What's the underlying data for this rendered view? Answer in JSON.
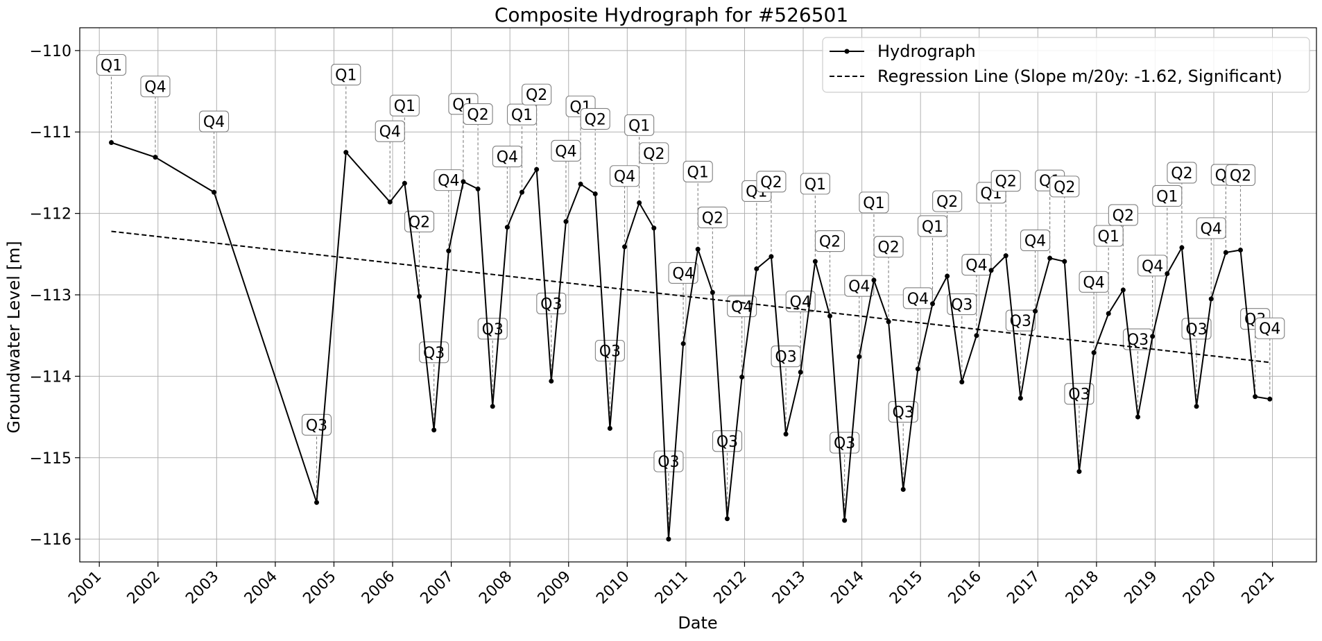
{
  "chart_data": {
    "type": "line",
    "title": "Composite Hydrograph for  #526501",
    "xlabel": "Date",
    "ylabel": "Groundwater Level [m]",
    "x_ticks": [
      "2001",
      "2002",
      "2003",
      "2004",
      "2005",
      "2006",
      "2007",
      "2008",
      "2009",
      "2010",
      "2011",
      "2012",
      "2013",
      "2014",
      "2015",
      "2016",
      "2017",
      "2018",
      "2019",
      "2020",
      "2021"
    ],
    "y_ticks": [
      "−110",
      "−111",
      "−112",
      "−113",
      "−114",
      "−115",
      "−116"
    ],
    "y_tick_values": [
      -110,
      -111,
      -112,
      -113,
      -114,
      -115,
      -116
    ],
    "xlim": [
      "2000-09-01",
      "2021-10-01"
    ],
    "ylim": [
      -116.28,
      -109.72
    ],
    "grid": true,
    "legend_position": "top-right",
    "series": [
      {
        "name": "Hydrograph",
        "style": "solid line with dot markers",
        "color": "#000000",
        "points": [
          {
            "date": "2001-03-15",
            "value": -111.13,
            "label": "Q1"
          },
          {
            "date": "2001-12-15",
            "value": -111.31,
            "label": "Q4"
          },
          {
            "date": "2002-12-15",
            "value": -111.74,
            "label": "Q4"
          },
          {
            "date": "2004-09-15",
            "value": -115.55,
            "label": "Q3"
          },
          {
            "date": "2005-03-15",
            "value": -111.25,
            "label": "Q1"
          },
          {
            "date": "2005-12-15",
            "value": -111.86,
            "label": "Q4"
          },
          {
            "date": "2006-03-15",
            "value": -111.63,
            "label": "Q1"
          },
          {
            "date": "2006-06-15",
            "value": -113.02,
            "label": "Q2"
          },
          {
            "date": "2006-09-15",
            "value": -114.66,
            "label": "Q3"
          },
          {
            "date": "2006-12-15",
            "value": -112.46,
            "label": "Q4"
          },
          {
            "date": "2007-03-15",
            "value": -111.61,
            "label": "Q1"
          },
          {
            "date": "2007-06-15",
            "value": -111.7,
            "label": "Q2"
          },
          {
            "date": "2007-09-15",
            "value": -114.37,
            "label": "Q3"
          },
          {
            "date": "2007-12-15",
            "value": -112.17,
            "label": "Q4"
          },
          {
            "date": "2008-03-15",
            "value": -111.74,
            "label": "Q1"
          },
          {
            "date": "2008-06-15",
            "value": -111.46,
            "label": "Q2"
          },
          {
            "date": "2008-09-15",
            "value": -114.06,
            "label": "Q3"
          },
          {
            "date": "2008-12-15",
            "value": -112.1,
            "label": "Q4"
          },
          {
            "date": "2009-03-15",
            "value": -111.64,
            "label": "Q1"
          },
          {
            "date": "2009-06-15",
            "value": -111.76,
            "label": "Q2"
          },
          {
            "date": "2009-09-15",
            "value": -114.64,
            "label": "Q3"
          },
          {
            "date": "2009-12-15",
            "value": -112.41,
            "label": "Q4"
          },
          {
            "date": "2010-03-15",
            "value": -111.87,
            "label": "Q1"
          },
          {
            "date": "2010-06-15",
            "value": -112.18,
            "label": "Q2"
          },
          {
            "date": "2010-09-15",
            "value": -116.0,
            "label": "Q3"
          },
          {
            "date": "2010-12-15",
            "value": -113.6,
            "label": "Q4"
          },
          {
            "date": "2011-03-15",
            "value": -112.44,
            "label": "Q1"
          },
          {
            "date": "2011-06-15",
            "value": -112.97,
            "label": "Q2"
          },
          {
            "date": "2011-09-15",
            "value": -115.75,
            "label": "Q3"
          },
          {
            "date": "2011-12-15",
            "value": -114.01,
            "label": "Q4"
          },
          {
            "date": "2012-03-15",
            "value": -112.68,
            "label": "Q1"
          },
          {
            "date": "2012-06-15",
            "value": -112.53,
            "label": "Q2"
          },
          {
            "date": "2012-09-15",
            "value": -114.71,
            "label": "Q3"
          },
          {
            "date": "2012-12-15",
            "value": -113.95,
            "label": "Q4"
          },
          {
            "date": "2013-03-15",
            "value": -112.59,
            "label": "Q1"
          },
          {
            "date": "2013-06-15",
            "value": -113.26,
            "label": "Q2"
          },
          {
            "date": "2013-09-15",
            "value": -115.77,
            "label": "Q3"
          },
          {
            "date": "2013-12-15",
            "value": -113.76,
            "label": "Q4"
          },
          {
            "date": "2014-03-15",
            "value": -112.82,
            "label": "Q1"
          },
          {
            "date": "2014-06-15",
            "value": -113.33,
            "label": "Q2"
          },
          {
            "date": "2014-09-15",
            "value": -115.39,
            "label": "Q3"
          },
          {
            "date": "2014-12-15",
            "value": -113.91,
            "label": "Q4"
          },
          {
            "date": "2015-03-15",
            "value": -113.11,
            "label": "Q1"
          },
          {
            "date": "2015-06-15",
            "value": -112.77,
            "label": "Q2"
          },
          {
            "date": "2015-09-15",
            "value": -114.07,
            "label": "Q3"
          },
          {
            "date": "2015-12-15",
            "value": -113.5,
            "label": "Q4"
          },
          {
            "date": "2016-03-15",
            "value": -112.7,
            "label": "Q1"
          },
          {
            "date": "2016-06-15",
            "value": -112.52,
            "label": "Q2"
          },
          {
            "date": "2016-09-15",
            "value": -114.27,
            "label": "Q3"
          },
          {
            "date": "2016-12-15",
            "value": -113.2,
            "label": "Q4"
          },
          {
            "date": "2017-03-15",
            "value": -112.55,
            "label": "Q1"
          },
          {
            "date": "2017-06-15",
            "value": -112.59,
            "label": "Q2"
          },
          {
            "date": "2017-09-15",
            "value": -115.17,
            "label": "Q3"
          },
          {
            "date": "2017-12-15",
            "value": -113.71,
            "label": "Q4"
          },
          {
            "date": "2018-03-15",
            "value": -113.23,
            "label": "Q1"
          },
          {
            "date": "2018-06-15",
            "value": -112.94,
            "label": "Q2"
          },
          {
            "date": "2018-09-15",
            "value": -114.5,
            "label": "Q3"
          },
          {
            "date": "2018-12-15",
            "value": -113.51,
            "label": "Q4"
          },
          {
            "date": "2019-03-15",
            "value": -112.74,
            "label": "Q1"
          },
          {
            "date": "2019-06-15",
            "value": -112.42,
            "label": "Q2"
          },
          {
            "date": "2019-09-15",
            "value": -114.37,
            "label": "Q3"
          },
          {
            "date": "2019-12-15",
            "value": -113.05,
            "label": "Q4"
          },
          {
            "date": "2020-03-15",
            "value": -112.48,
            "label": "Q1"
          },
          {
            "date": "2020-06-15",
            "value": -112.45,
            "label": "Q2"
          },
          {
            "date": "2020-09-15",
            "value": -114.25,
            "label": "Q3"
          },
          {
            "date": "2020-12-15",
            "value": -114.28,
            "label": "Q4"
          }
        ]
      },
      {
        "name": "Regression Line (Slope m/20y: -1.62, Significant)",
        "style": "dashed line",
        "color": "#000000",
        "points": [
          {
            "date": "2001-03-15",
            "value": -112.22
          },
          {
            "date": "2020-12-15",
            "value": -113.83
          }
        ]
      }
    ]
  }
}
